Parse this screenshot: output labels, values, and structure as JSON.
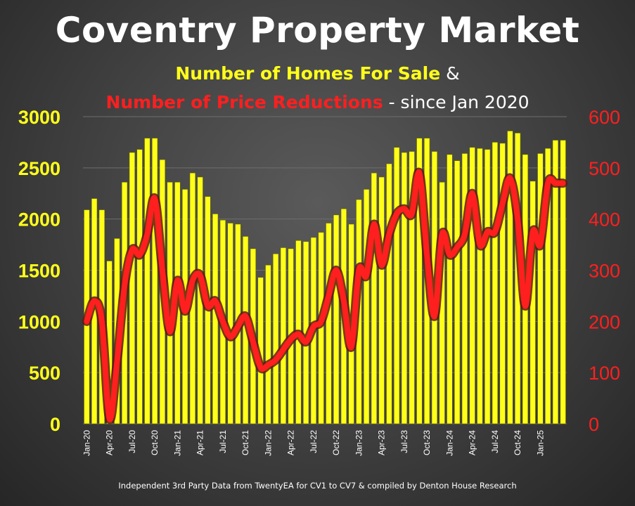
{
  "title": "Coventry Property Market",
  "subtitle": {
    "part1": "Number of Homes For Sale",
    "part2": " &",
    "part3": "Number of Price Reductions",
    "part4": " - since Jan 2020"
  },
  "footer": "Independent 3rd Party Data from TwentyEA for CV1 to CV7 & compiled by Denton House Research",
  "chart_data": {
    "type": "bar",
    "left_axis": {
      "min": 0,
      "max": 3000,
      "ticks": [
        0,
        500,
        1000,
        1500,
        2000,
        2500,
        3000
      ]
    },
    "right_axis": {
      "min": 0,
      "max": 600,
      "ticks": [
        0,
        100,
        200,
        300,
        400,
        500,
        600
      ]
    },
    "categories": [
      "Jan-20",
      "Feb-20",
      "Mar-20",
      "Apr-20",
      "May-20",
      "Jun-20",
      "Jul-20",
      "Aug-20",
      "Sep-20",
      "Oct-20",
      "Nov-20",
      "Dec-20",
      "Jan-21",
      "Feb-21",
      "Mar-21",
      "Apr-21",
      "May-21",
      "Jun-21",
      "Jul-21",
      "Aug-21",
      "Sep-21",
      "Oct-21",
      "Nov-21",
      "Dec-21",
      "Jan-22",
      "Feb-22",
      "Mar-22",
      "Apr-22",
      "May-22",
      "Jun-22",
      "Jul-22",
      "Aug-22",
      "Sep-22",
      "Oct-22",
      "Nov-22",
      "Dec-22",
      "Jan-23",
      "Feb-23",
      "Mar-23",
      "Apr-23",
      "May-23",
      "Jun-23",
      "Jul-23",
      "Aug-23",
      "Sep-23",
      "Oct-23",
      "Nov-23",
      "Dec-23",
      "Jan-24",
      "Feb-24",
      "Mar-24",
      "Apr-24",
      "May-24",
      "Jun-24",
      "Jul-24",
      "Aug-24",
      "Sep-24",
      "Oct-24",
      "Nov-24",
      "Dec-24",
      "Jan-25",
      "Feb-25",
      "Mar-25",
      "Apr-25"
    ],
    "x_tick_labels": [
      "Jan-20",
      "Apr-20",
      "Jul-20",
      "Oct-20",
      "Jan-21",
      "Apr-21",
      "Jul-21",
      "Oct-21",
      "Jan-22",
      "Apr-22",
      "Jul-22",
      "Oct-22",
      "Jan-23",
      "Apr-23",
      "Jul-23",
      "Oct-23",
      "Jan-24",
      "Apr-24",
      "Jul-24",
      "Oct-24",
      "Jan-25"
    ],
    "series": [
      {
        "name": "Number of Homes For Sale",
        "axis": "left",
        "color": "#ffff1a",
        "values": [
          2090,
          2200,
          2090,
          1590,
          1810,
          2360,
          2650,
          2680,
          2790,
          2790,
          2580,
          2360,
          2360,
          2290,
          2450,
          2410,
          2220,
          2050,
          1990,
          1960,
          1950,
          1830,
          1710,
          1430,
          1550,
          1660,
          1720,
          1710,
          1790,
          1780,
          1820,
          1870,
          1960,
          2040,
          2100,
          1950,
          2190,
          2290,
          2450,
          2410,
          2540,
          2700,
          2650,
          2660,
          2790,
          2790,
          2660,
          2360,
          2630,
          2570,
          2640,
          2700,
          2690,
          2680,
          2750,
          2740,
          2860,
          2840,
          2630,
          2370,
          2640,
          2690,
          2770,
          2770
        ]
      },
      {
        "name": "Number of Price Reductions",
        "axis": "right",
        "color": "#ff1f1f",
        "values": [
          200,
          240,
          200,
          10,
          120,
          270,
          340,
          330,
          370,
          440,
          300,
          180,
          280,
          220,
          280,
          290,
          230,
          240,
          200,
          170,
          190,
          210,
          160,
          110,
          115,
          125,
          145,
          165,
          175,
          160,
          190,
          200,
          250,
          300,
          240,
          150,
          300,
          290,
          390,
          310,
          370,
          410,
          420,
          410,
          490,
          330,
          210,
          370,
          330,
          345,
          370,
          450,
          350,
          375,
          375,
          430,
          480,
          400,
          230,
          375,
          350,
          470,
          470,
          470
        ]
      }
    ]
  }
}
